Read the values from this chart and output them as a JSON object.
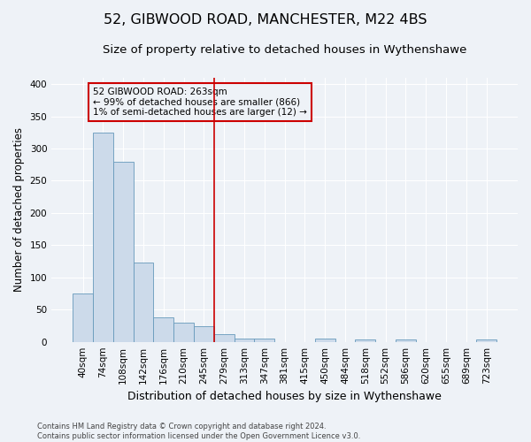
{
  "title": "52, GIBWOOD ROAD, MANCHESTER, M22 4BS",
  "subtitle": "Size of property relative to detached houses in Wythenshawe",
  "xlabel": "Distribution of detached houses by size in Wythenshawe",
  "ylabel": "Number of detached properties",
  "footnote": "Contains HM Land Registry data © Crown copyright and database right 2024.\nContains public sector information licensed under the Open Government Licence v3.0.",
  "bin_labels": [
    "40sqm",
    "74sqm",
    "108sqm",
    "142sqm",
    "176sqm",
    "210sqm",
    "245sqm",
    "279sqm",
    "313sqm",
    "347sqm",
    "381sqm",
    "415sqm",
    "450sqm",
    "484sqm",
    "518sqm",
    "552sqm",
    "586sqm",
    "620sqm",
    "655sqm",
    "689sqm",
    "723sqm"
  ],
  "bar_heights": [
    75,
    325,
    280,
    123,
    38,
    30,
    24,
    12,
    5,
    5,
    0,
    0,
    5,
    0,
    4,
    0,
    4,
    0,
    0,
    0,
    3
  ],
  "bar_color": "#ccdaea",
  "bar_edge_color": "#6699bb",
  "bar_width": 1.0,
  "vline_x_index": 7,
  "vline_color": "#cc0000",
  "annotation_line1": "52 GIBWOOD ROAD: 263sqm",
  "annotation_line2": "← 99% of detached houses are smaller (866)",
  "annotation_line3": "1% of semi-detached houses are larger (12) →",
  "annotation_box_color": "#cc0000",
  "ylim": [
    0,
    410
  ],
  "yticks": [
    0,
    50,
    100,
    150,
    200,
    250,
    300,
    350,
    400
  ],
  "background_color": "#eef2f7",
  "grid_color": "#ffffff",
  "title_fontsize": 11.5,
  "subtitle_fontsize": 9.5,
  "xlabel_fontsize": 9,
  "ylabel_fontsize": 8.5,
  "tick_fontsize": 7.5,
  "annotation_fontsize": 7.5,
  "footnote_fontsize": 6
}
